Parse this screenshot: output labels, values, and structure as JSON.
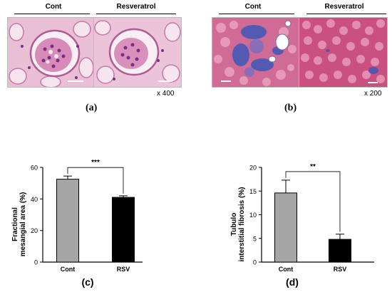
{
  "panel_a": {
    "groups": [
      "Cont",
      "Resveratrol"
    ],
    "magnification": "x 400",
    "letter": "(a)"
  },
  "panel_b": {
    "groups": [
      "Cont",
      "Resveratrol"
    ],
    "magnification": "x 200",
    "letter": "(b)"
  },
  "colors": {
    "cont_bar": "#a6a6a6",
    "rsv_bar": "#000000",
    "tissue_pink": "#e4a3c4",
    "tissue_purple": "#8a3a8c",
    "trichrome_red": "#c24a7e",
    "trichrome_blue": "#3f58b8"
  },
  "chart_data": [
    {
      "type": "bar",
      "panel": "(c)",
      "categories": [
        "Cont",
        "RSV"
      ],
      "values": [
        52.5,
        41
      ],
      "errors": [
        2,
        1
      ],
      "ylabel_line1": "Fractional",
      "ylabel_line2": "mesangial area (%)",
      "ylim": [
        0,
        60
      ],
      "yticks": [
        "0",
        "20",
        "40",
        "60"
      ],
      "significance": "***",
      "grid": false
    },
    {
      "type": "bar",
      "panel": "(d)",
      "categories": [
        "Cont",
        "RSV"
      ],
      "values": [
        14.6,
        4.8
      ],
      "errors": [
        2.7,
        1.1
      ],
      "ylabel_line1": "Tubulo",
      "ylabel_line2": "interstitial fibrosis (%)",
      "ylim": [
        0,
        20
      ],
      "yticks": [
        "0",
        "5",
        "10",
        "15",
        "20"
      ],
      "significance": "**",
      "grid": false
    }
  ]
}
